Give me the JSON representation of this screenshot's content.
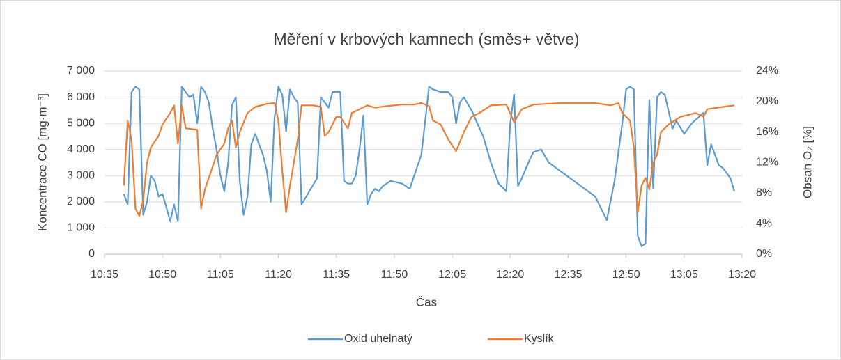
{
  "chart_data": {
    "type": "line",
    "title": "Měření v krbových kamnech (směs+ větve)",
    "xlabel": "Čas",
    "ylabel": "Koncentrace CO [mg·m⁻³]",
    "y2label": "Obsah O₂ [%]",
    "xlim": [
      "10:35",
      "13:20"
    ],
    "xticks": [
      "10:35",
      "10:50",
      "11:05",
      "11:20",
      "11:35",
      "11:50",
      "12:05",
      "12:20",
      "12:35",
      "12:50",
      "13:05",
      "13:20"
    ],
    "ylim": [
      0,
      7000
    ],
    "yticks": [
      0,
      {
        "value": 1000,
        "label": "1 000"
      },
      {
        "value": 2000,
        "label": "2 000"
      },
      {
        "value": 3000,
        "label": "3 000"
      },
      {
        "value": 4000,
        "label": "4 000"
      },
      {
        "value": 5000,
        "label": "5 000"
      },
      {
        "value": 6000,
        "label": "6 000"
      },
      {
        "value": 7000,
        "label": "7 000"
      }
    ],
    "y2lim": [
      0,
      24
    ],
    "y2ticks": [
      {
        "value": 0,
        "label": "0%"
      },
      {
        "value": 4,
        "label": "4%"
      },
      {
        "value": 8,
        "label": "8%"
      },
      {
        "value": 12,
        "label": "12%"
      },
      {
        "value": 16,
        "label": "16%"
      },
      {
        "value": 20,
        "label": "20%"
      },
      {
        "value": 24,
        "label": "24%"
      }
    ],
    "grid": true,
    "legend": "bottom",
    "series": [
      {
        "name": "Oxid uhelnatý",
        "color": "#5b9bd5",
        "x": [
          "10:40",
          "10:41",
          "10:42",
          "10:43",
          "10:44",
          "10:45",
          "10:46",
          "10:47",
          "10:48",
          "10:49",
          "10:50",
          "10:51",
          "10:52",
          "10:53",
          "10:54",
          "10:55",
          "10:56",
          "10:57",
          "10:58",
          "10:59",
          "11:00",
          "11:01",
          "11:02",
          "11:03",
          "11:04",
          "11:05",
          "11:06",
          "11:07",
          "11:08",
          "11:09",
          "11:10",
          "11:11",
          "11:12",
          "11:13",
          "11:14",
          "11:15",
          "11:16",
          "11:17",
          "11:18",
          "11:19",
          "11:20",
          "11:21",
          "11:22",
          "11:23",
          "11:24",
          "11:25",
          "11:26",
          "11:30",
          "11:31",
          "11:32",
          "11:33",
          "11:34",
          "11:36",
          "11:37",
          "11:38",
          "11:39",
          "11:40",
          "11:41",
          "11:42",
          "11:43",
          "11:44",
          "11:45",
          "11:46",
          "11:47",
          "11:49",
          "11:52",
          "11:54",
          "11:57",
          "11:59",
          "12:00",
          "12:02",
          "12:04",
          "12:05",
          "12:06",
          "12:07",
          "12:08",
          "12:10",
          "12:13",
          "12:15",
          "12:17",
          "12:19",
          "12:20",
          "12:21",
          "12:22",
          "12:23",
          "12:25",
          "12:26",
          "12:28",
          "12:30",
          "12:42",
          "12:45",
          "12:47",
          "12:49",
          "12:50",
          "12:51",
          "12:52",
          "12:53",
          "12:54",
          "12:55",
          "12:56",
          "12:57",
          "12:58",
          "12:59",
          "13:00",
          "13:02",
          "13:03",
          "13:05",
          "13:07",
          "13:10",
          "13:11",
          "13:12",
          "13:14",
          "13:15",
          "13:17",
          "13:18"
        ],
        "values": [
          2300,
          1900,
          6200,
          6400,
          6300,
          1500,
          2000,
          3000,
          2800,
          2200,
          2300,
          1800,
          1250,
          1900,
          1250,
          6400,
          6200,
          6000,
          6100,
          5000,
          6400,
          6200,
          5800,
          4800,
          4000,
          3000,
          2400,
          3500,
          5700,
          6000,
          2800,
          1500,
          2200,
          4200,
          4600,
          4200,
          3800,
          3200,
          2000,
          5200,
          6400,
          6100,
          4700,
          6300,
          6000,
          5800,
          1900,
          2900,
          6000,
          5800,
          5600,
          6200,
          6200,
          2800,
          2700,
          2700,
          3000,
          4000,
          5300,
          1900,
          2300,
          2500,
          2400,
          2600,
          2800,
          2700,
          2500,
          3800,
          6400,
          6300,
          6200,
          6200,
          6000,
          5000,
          5800,
          6000,
          5500,
          4500,
          3500,
          2700,
          2400,
          5000,
          6100,
          2600,
          2900,
          3600,
          3900,
          4000,
          3500,
          2200,
          1300,
          2800,
          5000,
          6300,
          6400,
          6300,
          700,
          300,
          400,
          5900,
          2500,
          6000,
          6200,
          6100,
          4800,
          5100,
          4600,
          5000,
          5400,
          3400,
          4200,
          3400,
          3300,
          2900,
          2400
        ]
      },
      {
        "name": "Kyslík",
        "color": "#ed7d31",
        "axis": "y2",
        "x": [
          "10:40",
          "10:41",
          "10:42",
          "10:43",
          "10:44",
          "10:45",
          "10:46",
          "10:47",
          "10:49",
          "10:50",
          "10:52",
          "10:53",
          "10:54",
          "10:55",
          "10:56",
          "10:59",
          "11:00",
          "11:01",
          "11:02",
          "11:04",
          "11:06",
          "11:07",
          "11:08",
          "11:09",
          "11:10",
          "11:12",
          "11:14",
          "11:17",
          "11:19",
          "11:20",
          "11:21",
          "11:22",
          "11:23",
          "11:25",
          "11:26",
          "11:29",
          "11:31",
          "11:32",
          "11:33",
          "11:34",
          "11:35",
          "11:36",
          "11:38",
          "11:39",
          "11:41",
          "11:43",
          "11:45",
          "11:48",
          "11:52",
          "11:55",
          "11:57",
          "11:59",
          "12:00",
          "12:02",
          "12:04",
          "12:06",
          "12:08",
          "12:10",
          "12:12",
          "12:15",
          "12:19",
          "12:21",
          "12:23",
          "12:26",
          "12:33",
          "12:42",
          "12:46",
          "12:48",
          "12:49",
          "12:51",
          "12:52",
          "12:53",
          "12:54",
          "12:55",
          "12:56",
          "12:57",
          "12:58",
          "12:59",
          "13:01",
          "13:04",
          "13:08",
          "13:10",
          "13:11",
          "13:15",
          "13:18"
        ],
        "values": [
          9,
          17.5,
          15,
          6,
          5,
          7,
          12,
          14,
          15.5,
          17,
          18.5,
          19.5,
          14.5,
          19.5,
          16.5,
          16.3,
          6,
          8.5,
          10,
          13,
          14.5,
          16.5,
          17.5,
          14,
          16,
          18.5,
          19.3,
          19.7,
          19.8,
          17.5,
          11,
          5.5,
          9,
          15,
          19.5,
          19.5,
          19.3,
          15.5,
          16,
          17,
          18,
          18,
          16.5,
          18.5,
          19,
          19.5,
          19.2,
          19.4,
          19.6,
          19.6,
          19.8,
          19.4,
          17.5,
          17,
          15,
          13.5,
          16,
          18,
          18.5,
          19.5,
          19.6,
          17.3,
          19,
          19.6,
          19.8,
          19.8,
          19.5,
          19.8,
          18.5,
          17.5,
          14,
          5.5,
          9,
          10,
          8.5,
          12,
          13,
          16,
          17,
          18,
          18.5,
          18,
          19,
          19.3,
          19.5
        ]
      }
    ]
  }
}
